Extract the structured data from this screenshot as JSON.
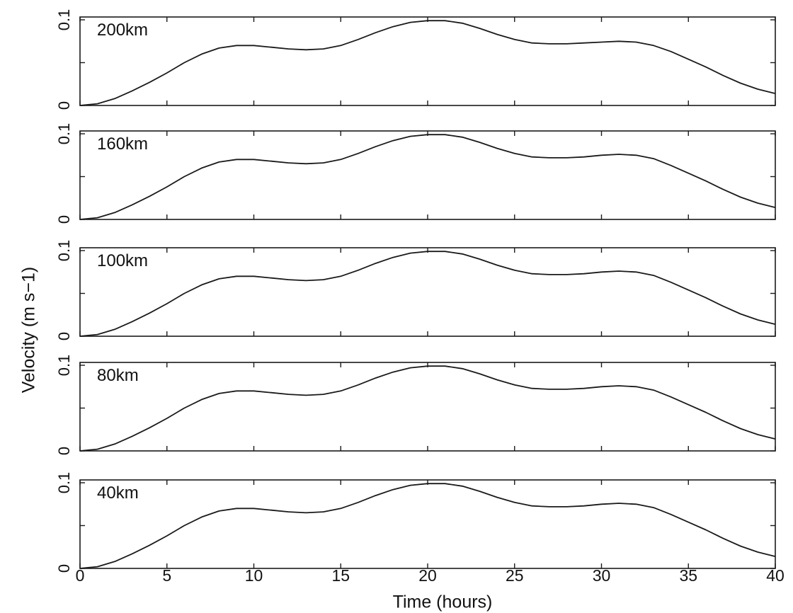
{
  "figure": {
    "ylabel": "Velocity (m s−1)",
    "xlabel": "Time (hours)"
  },
  "chart_data": {
    "type": "line",
    "xlabel": "Time (hours)",
    "ylabel": "Velocity (m s−1)",
    "xlim": [
      0,
      40
    ],
    "ylim": [
      0,
      0.1
    ],
    "x_ticks": [
      "0",
      "5",
      "10",
      "15",
      "20",
      "25",
      "30",
      "35",
      "40"
    ],
    "y_tick_labels": [
      "0",
      "0.1"
    ],
    "y_minor_tick": 0.05,
    "grid": false,
    "line_color": "#1a1a1a",
    "x": [
      0,
      1,
      2,
      3,
      4,
      5,
      6,
      7,
      8,
      9,
      10,
      11,
      12,
      13,
      14,
      15,
      16,
      17,
      18,
      19,
      20,
      21,
      22,
      23,
      24,
      25,
      26,
      27,
      28,
      29,
      30,
      31,
      32,
      33,
      34,
      35,
      36,
      37,
      38,
      39,
      40
    ],
    "panels": [
      {
        "label": "200km",
        "values": [
          0,
          0.002,
          0.008,
          0.017,
          0.027,
          0.038,
          0.05,
          0.06,
          0.067,
          0.07,
          0.07,
          0.068,
          0.066,
          0.065,
          0.066,
          0.07,
          0.077,
          0.085,
          0.092,
          0.097,
          0.099,
          0.099,
          0.096,
          0.09,
          0.083,
          0.077,
          0.073,
          0.072,
          0.072,
          0.073,
          0.074,
          0.075,
          0.074,
          0.07,
          0.063,
          0.054,
          0.045,
          0.035,
          0.026,
          0.019,
          0.014
        ]
      },
      {
        "label": "160km",
        "values": [
          0,
          0.002,
          0.008,
          0.017,
          0.027,
          0.038,
          0.05,
          0.06,
          0.067,
          0.07,
          0.07,
          0.068,
          0.066,
          0.065,
          0.066,
          0.07,
          0.077,
          0.085,
          0.092,
          0.097,
          0.099,
          0.099,
          0.096,
          0.09,
          0.083,
          0.077,
          0.073,
          0.072,
          0.072,
          0.073,
          0.075,
          0.076,
          0.075,
          0.071,
          0.063,
          0.054,
          0.045,
          0.035,
          0.026,
          0.019,
          0.014
        ]
      },
      {
        "label": "100km",
        "values": [
          0,
          0.002,
          0.008,
          0.017,
          0.027,
          0.038,
          0.05,
          0.06,
          0.067,
          0.07,
          0.07,
          0.068,
          0.066,
          0.065,
          0.066,
          0.07,
          0.077,
          0.085,
          0.092,
          0.097,
          0.099,
          0.099,
          0.096,
          0.09,
          0.083,
          0.077,
          0.073,
          0.072,
          0.072,
          0.073,
          0.075,
          0.076,
          0.075,
          0.071,
          0.063,
          0.054,
          0.045,
          0.035,
          0.026,
          0.019,
          0.014
        ]
      },
      {
        "label": "80km",
        "values": [
          0,
          0.002,
          0.008,
          0.017,
          0.027,
          0.038,
          0.05,
          0.06,
          0.067,
          0.07,
          0.07,
          0.068,
          0.066,
          0.065,
          0.066,
          0.07,
          0.077,
          0.085,
          0.092,
          0.097,
          0.099,
          0.099,
          0.096,
          0.09,
          0.083,
          0.077,
          0.073,
          0.072,
          0.072,
          0.073,
          0.075,
          0.076,
          0.075,
          0.071,
          0.063,
          0.054,
          0.045,
          0.035,
          0.026,
          0.019,
          0.014
        ]
      },
      {
        "label": "40km",
        "values": [
          0,
          0.002,
          0.008,
          0.017,
          0.027,
          0.038,
          0.05,
          0.06,
          0.067,
          0.07,
          0.07,
          0.068,
          0.066,
          0.065,
          0.066,
          0.07,
          0.077,
          0.085,
          0.092,
          0.097,
          0.099,
          0.099,
          0.096,
          0.09,
          0.083,
          0.077,
          0.073,
          0.072,
          0.072,
          0.073,
          0.075,
          0.076,
          0.075,
          0.071,
          0.063,
          0.054,
          0.045,
          0.035,
          0.026,
          0.019,
          0.014
        ]
      }
    ]
  }
}
